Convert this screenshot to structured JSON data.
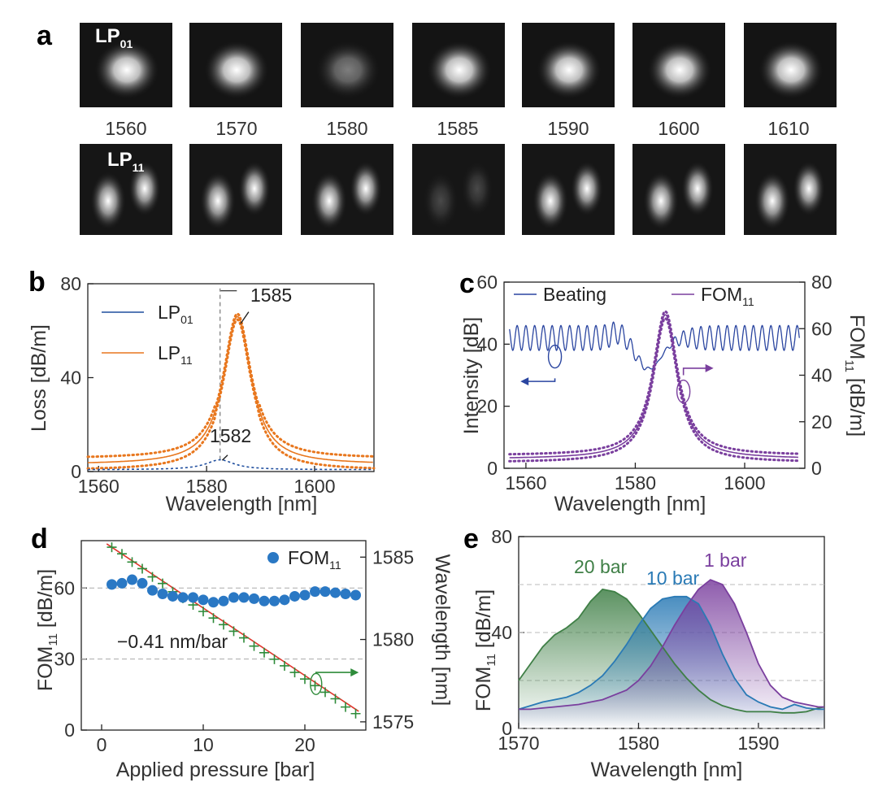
{
  "colors": {
    "lp01": "#1f4e9e",
    "lp11": "#e8771e",
    "beating": "#2a45a0",
    "fom11": "#7a3f9e",
    "dots": "#2a78c4",
    "cross": "#2e8b3a",
    "fitline": "#e0362c",
    "bar20": "#3f7f46",
    "bar10": "#2a7ab5",
    "bar1": "#7a3f9e"
  },
  "panel_a": {
    "letter": "a",
    "row1_label": "LP",
    "row1_sub": "01",
    "row2_label": "LP",
    "row2_sub": "11",
    "wavelengths": [
      "1560",
      "1570",
      "1580",
      "1585",
      "1590",
      "1600",
      "1610"
    ]
  },
  "chart_data": [
    {
      "panel": "b",
      "type": "line",
      "xlabel": "Wavelength [nm]",
      "ylabel": "Loss [dB/m]",
      "xlim": [
        1558,
        1611
      ],
      "ylim": [
        0,
        80
      ],
      "xticks": [
        "1560",
        "1580",
        "1600"
      ],
      "yticks": [
        "0",
        "40",
        "80"
      ],
      "series": [
        {
          "name": "LP",
          "sub": "01",
          "model": "lorentz",
          "center": 1582.5,
          "width": 3.2,
          "peak": 4.2,
          "base": 0.8
        },
        {
          "name": "LP",
          "sub": "11",
          "model": "lorentz",
          "center": 1585.7,
          "width": 3.1,
          "peak": 63,
          "base": 3.0
        }
      ],
      "annotations": [
        {
          "text": "1585",
          "x": 1585,
          "y": 66
        },
        {
          "text": "1582",
          "x": 1582,
          "y": 6
        }
      ]
    },
    {
      "panel": "c",
      "type": "line",
      "xlabel": "Wavelength [nm]",
      "ylabel": "Intensity [dB]",
      "ylabel2": "FOM",
      "ylabel2_sub": "11",
      "ylabel2_unit": " [dB/m]",
      "xlim": [
        1556,
        1611
      ],
      "ylim": [
        0,
        60
      ],
      "ylim2": [
        0,
        80
      ],
      "xticks": [
        "1560",
        "1580",
        "1600"
      ],
      "yticks": [
        "0",
        "20",
        "40",
        "60"
      ],
      "y2ticks": [
        "0",
        "20",
        "40",
        "60",
        "80"
      ],
      "series": [
        {
          "name": "Beating",
          "model": "beating",
          "mean": 42,
          "amp": 4,
          "period": 1.6
        },
        {
          "name": "FOM",
          "sub": "11",
          "model": "lorentz",
          "center": 1585.5,
          "width": 2.7,
          "peak": 62,
          "base": 4
        }
      ]
    },
    {
      "panel": "d",
      "type": "scatter",
      "xlabel": "Applied pressure [bar]",
      "ylabel": "FOM",
      "ylabel_sub": "11",
      "ylabel_unit": " [dB/m]",
      "ylabel2": "Wavelength [nm]",
      "xlim": [
        -2,
        26
      ],
      "ylim": [
        0,
        80
      ],
      "ylim2": [
        1574.5,
        1586
      ],
      "xticks": [
        "0",
        "10",
        "20"
      ],
      "yticks": [
        "0",
        "30",
        "60"
      ],
      "y2ticks": [
        "1575",
        "1580",
        "1585"
      ],
      "annotation": "−0.41 nm/bar",
      "series": [
        {
          "name": "FOM",
          "sub": "11",
          "x": [
            1,
            2,
            3,
            4,
            5,
            6,
            7,
            8,
            9,
            10,
            11,
            12,
            13,
            14,
            15,
            16,
            17,
            18,
            19,
            20,
            21,
            22,
            23,
            24,
            25
          ],
          "y": [
            61.5,
            62,
            63.5,
            62,
            59,
            57.5,
            56.5,
            56,
            56,
            55,
            54,
            54.5,
            56,
            56,
            55.5,
            54.5,
            54.5,
            55,
            56.5,
            57,
            58.5,
            58.5,
            58,
            57.5,
            57
          ]
        },
        {
          "name": "Wavelength",
          "x": [
            1,
            2,
            3,
            4,
            5,
            6,
            7,
            8,
            9,
            10,
            11,
            12,
            13,
            14,
            15,
            16,
            17,
            18,
            19,
            20,
            21,
            22,
            23,
            24,
            25
          ],
          "y": [
            1585.6,
            1585.2,
            1584.7,
            1584.3,
            1583.8,
            1583.4,
            1582.9,
            1582.5,
            1582.1,
            1581.7,
            1581.3,
            1580.9,
            1580.5,
            1580.1,
            1579.6,
            1579.2,
            1578.8,
            1578.4,
            1578.0,
            1577.6,
            1577.2,
            1576.8,
            1576.4,
            1575.9,
            1575.5
          ]
        },
        {
          "name": "fit",
          "slope": -0.41,
          "x0": 1,
          "y0": 1585.6
        }
      ]
    },
    {
      "panel": "e",
      "type": "area",
      "xlabel": "Wavelength [nm]",
      "ylabel": "FOM",
      "ylabel_sub": "11",
      "ylabel_unit": " [dB/m]",
      "xlim": [
        1570,
        1595.5
      ],
      "ylim": [
        0,
        80
      ],
      "xticks": [
        "1570",
        "1580",
        "1590"
      ],
      "yticks": [
        "0",
        "40",
        "80"
      ],
      "series": [
        {
          "name": "20 bar",
          "x": [
            1570,
            1571,
            1572,
            1573,
            1574,
            1575,
            1576,
            1577,
            1578,
            1579,
            1580,
            1581,
            1582,
            1583,
            1584,
            1585,
            1586,
            1587,
            1588,
            1589,
            1590,
            1591,
            1592,
            1593,
            1594,
            1595,
            1595.5
          ],
          "y": [
            20,
            27,
            34,
            39,
            42,
            46,
            53,
            58,
            57,
            54,
            48,
            41,
            34,
            27,
            21,
            16,
            12,
            9.5,
            8,
            7,
            7,
            7,
            6.5,
            6.5,
            7,
            8.5,
            9
          ]
        },
        {
          "name": "10 bar",
          "x": [
            1570,
            1571,
            1572,
            1573,
            1574,
            1575,
            1576,
            1577,
            1578,
            1579,
            1580,
            1581,
            1582,
            1583,
            1584,
            1585,
            1586,
            1587,
            1588,
            1589,
            1590,
            1591,
            1592,
            1593,
            1594,
            1595,
            1595.5
          ],
          "y": [
            8,
            9.5,
            11,
            12,
            13,
            15,
            18,
            22,
            28,
            35,
            43,
            50,
            54,
            55,
            55,
            52,
            43,
            31,
            21,
            14,
            11,
            9,
            8,
            10,
            8.5,
            8,
            8
          ]
        },
        {
          "name": "1 bar",
          "x": [
            1570,
            1571,
            1572,
            1573,
            1574,
            1575,
            1576,
            1577,
            1578,
            1579,
            1580,
            1581,
            1582,
            1583,
            1584,
            1585,
            1586,
            1587,
            1588,
            1589,
            1590,
            1591,
            1592,
            1593,
            1594,
            1595,
            1595.5
          ],
          "y": [
            8,
            8,
            8.5,
            9,
            9.5,
            10,
            11,
            12,
            14,
            16,
            20,
            26,
            34,
            43,
            51,
            58,
            62,
            60,
            52,
            40,
            27,
            18,
            13,
            11,
            10,
            9,
            9
          ]
        }
      ]
    }
  ]
}
